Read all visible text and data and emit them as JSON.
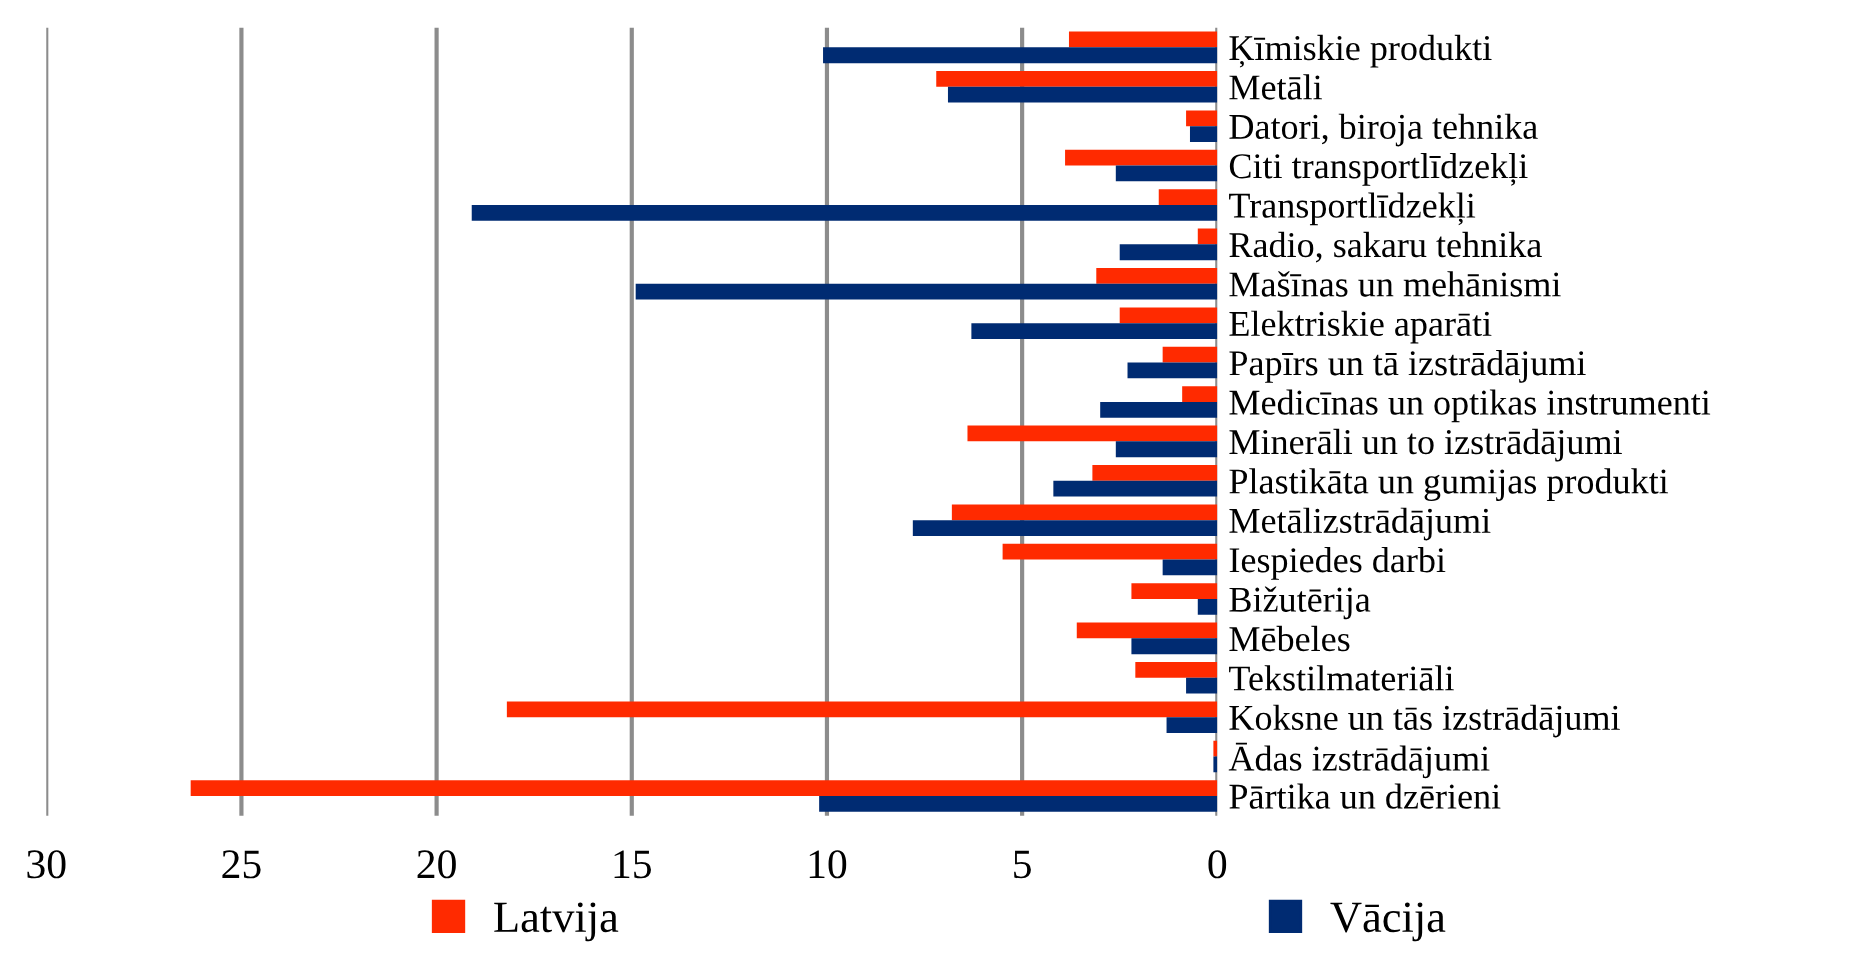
{
  "chart_data": {
    "type": "bar",
    "orientation": "horizontal",
    "categories": [
      "Ķīmiskie produkti",
      "Metāli",
      "Datori, biroja tehnika",
      "Citi transportlīdzekļi",
      "Transportlīdzekļi",
      "Radio, sakaru tehnika",
      "Mašīnas un mehānismi",
      "Elektriskie aparāti",
      "Papīrs un tā izstrādājumi",
      "Medicīnas un optikas instrumenti",
      "Minerāli un to izstrādājumi",
      "Plastikāta un gumijas produkti",
      "Metālizstrādājumi",
      "Iespiedes darbi",
      "Bižutērija",
      "Mēbeles",
      "Tekstilmateriāli",
      "Koksne un tās izstrādājumi",
      "Ādas izstrādājumi",
      "Pārtika un dzērieni"
    ],
    "series": [
      {
        "name": "Latvija",
        "color": "#ff2a00",
        "values": [
          3.8,
          7.2,
          0.8,
          3.9,
          1.5,
          0.5,
          3.1,
          2.5,
          1.4,
          0.9,
          6.4,
          3.2,
          6.8,
          5.5,
          2.2,
          3.6,
          2.1,
          18.2,
          0.1,
          26.3
        ]
      },
      {
        "name": "Vācija",
        "color": "#002b72",
        "values": [
          10.1,
          6.9,
          0.7,
          2.6,
          19.1,
          2.5,
          14.9,
          6.3,
          2.3,
          3.0,
          2.6,
          4.2,
          7.8,
          1.4,
          0.5,
          2.2,
          0.8,
          1.3,
          0.1,
          10.2
        ]
      }
    ],
    "xlim": [
      30,
      0
    ],
    "xticks": [
      30,
      25,
      20,
      15,
      10,
      5,
      0
    ],
    "grid": "x",
    "legend": "bottom"
  }
}
